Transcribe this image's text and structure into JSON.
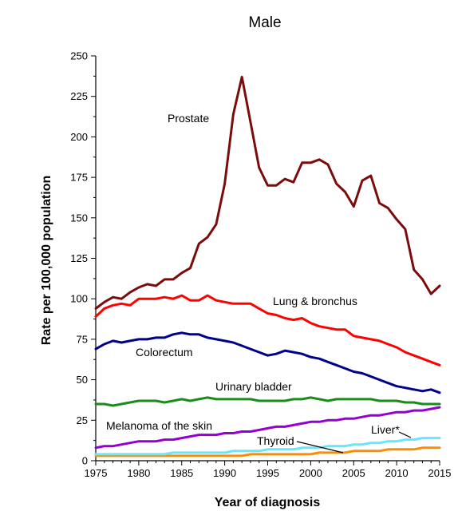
{
  "chart_data": {
    "type": "line",
    "title": "Male",
    "xlabel": "Year of diagnosis",
    "ylabel": "Rate per 100,000 population",
    "xlim": [
      1975,
      2015
    ],
    "ylim": [
      0,
      250
    ],
    "x_ticks": [
      1975,
      1980,
      1985,
      1990,
      1995,
      2000,
      2005,
      2010,
      2015
    ],
    "y_ticks": [
      0,
      25,
      50,
      75,
      100,
      125,
      150,
      175,
      200,
      225,
      250
    ],
    "x_tick_labels": [
      "1975",
      "1980",
      "1985",
      "1990",
      "1995",
      "2000",
      "2005",
      "2010",
      "2015"
    ],
    "y_tick_labels": [
      "0",
      "25",
      "50",
      "75",
      "100",
      "125",
      "150",
      "175",
      "200",
      "225",
      "250"
    ],
    "grid": false,
    "legend": "none (series labeled directly on plot)",
    "x": [
      1975,
      1976,
      1977,
      1978,
      1979,
      1980,
      1981,
      1982,
      1983,
      1984,
      1985,
      1986,
      1987,
      1988,
      1989,
      1990,
      1991,
      1992,
      1993,
      1994,
      1995,
      1996,
      1997,
      1998,
      1999,
      2000,
      2001,
      2002,
      2003,
      2004,
      2005,
      2006,
      2007,
      2008,
      2009,
      2010,
      2011,
      2012,
      2013,
      2014,
      2015
    ],
    "series": [
      {
        "name": "Prostate",
        "color": "#7b0c0c",
        "values": [
          94,
          98,
          101,
          100,
          104,
          107,
          109,
          108,
          112,
          112,
          116,
          119,
          134,
          138,
          146,
          171,
          214,
          237,
          209,
          181,
          170,
          170,
          174,
          172,
          184,
          184,
          186,
          183,
          171,
          166,
          157,
          173,
          176,
          159,
          156,
          149,
          143,
          118,
          112,
          103,
          108
        ]
      },
      {
        "name": "Lung & bronchus",
        "color": "#ff0000",
        "values": [
          89,
          94,
          96,
          97,
          96,
          100,
          100,
          100,
          101,
          100,
          102,
          99,
          99,
          102,
          99,
          98,
          97,
          97,
          97,
          94,
          91,
          90,
          88,
          87,
          88,
          85,
          83,
          82,
          81,
          81,
          77,
          76,
          75,
          74,
          72,
          70,
          67,
          65,
          63,
          61,
          59
        ]
      },
      {
        "name": "Colorectum",
        "color": "#00008b",
        "values": [
          69,
          72,
          74,
          73,
          74,
          75,
          75,
          76,
          76,
          78,
          79,
          78,
          78,
          76,
          75,
          74,
          73,
          71,
          69,
          67,
          65,
          66,
          68,
          67,
          66,
          64,
          63,
          61,
          59,
          57,
          55,
          54,
          52,
          50,
          48,
          46,
          45,
          44,
          43,
          44,
          42
        ]
      },
      {
        "name": "Urinary bladder",
        "color": "#1a8c1a",
        "values": [
          35,
          35,
          34,
          35,
          36,
          37,
          37,
          37,
          36,
          37,
          38,
          37,
          38,
          39,
          38,
          38,
          38,
          38,
          38,
          37,
          37,
          37,
          37,
          38,
          38,
          39,
          38,
          37,
          38,
          38,
          38,
          38,
          38,
          37,
          37,
          37,
          36,
          36,
          35,
          35,
          35
        ]
      },
      {
        "name": "Melanoma of the skin",
        "color": "#9400d3",
        "values": [
          8,
          9,
          9,
          10,
          11,
          12,
          12,
          12,
          13,
          13,
          14,
          15,
          16,
          16,
          16,
          17,
          17,
          18,
          18,
          19,
          20,
          21,
          21,
          22,
          23,
          24,
          24,
          25,
          25,
          26,
          26,
          27,
          28,
          28,
          29,
          30,
          30,
          31,
          31,
          32,
          33
        ]
      },
      {
        "name": "Thyroid",
        "color": "#ff8c00",
        "values": [
          3,
          3,
          3,
          3,
          3,
          3,
          3,
          3,
          3,
          3,
          3,
          3,
          3,
          3,
          3,
          3,
          3,
          3,
          4,
          4,
          4,
          4,
          4,
          4,
          4,
          4,
          5,
          5,
          5,
          5,
          6,
          6,
          6,
          6,
          7,
          7,
          7,
          7,
          8,
          8,
          8
        ]
      },
      {
        "name": "Liver*",
        "color": "#66e6ff",
        "values": [
          4,
          4,
          4,
          4,
          4,
          4,
          4,
          4,
          4,
          5,
          5,
          5,
          5,
          5,
          5,
          5,
          6,
          6,
          6,
          6,
          7,
          7,
          7,
          7,
          8,
          8,
          8,
          9,
          9,
          9,
          10,
          10,
          11,
          11,
          12,
          12,
          13,
          13,
          14,
          14,
          14
        ]
      }
    ]
  }
}
